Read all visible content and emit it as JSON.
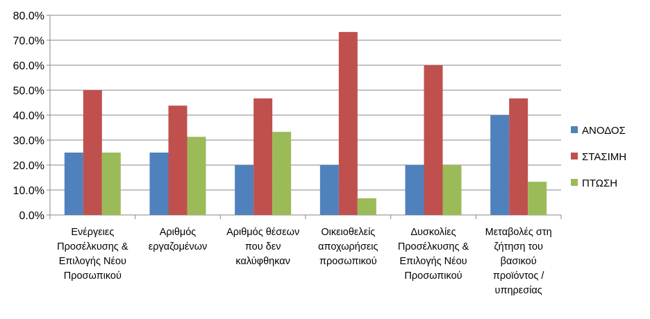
{
  "chart_data": {
    "type": "bar",
    "categories": [
      [
        "Ενέργειες",
        "Προσέλκυσης &",
        "Επιλογής Νέου",
        "Προσωπικού"
      ],
      [
        "Αριθμός",
        "εργαζομένων"
      ],
      [
        "Αριθμός θέσεων",
        "που δεν",
        "καλύφθηκαν"
      ],
      [
        "Οικειοθελείς",
        "αποχωρήσεις",
        "προσωπικού"
      ],
      [
        "Δυσκολίες",
        "Προσέλκυσης &",
        "Επιλογής Νέου",
        "Προσωπικού"
      ],
      [
        "Μεταβολές στη",
        "ζήτηση του",
        "βασικού",
        "προϊόντος /",
        "υπηρεσίας"
      ]
    ],
    "series": [
      {
        "name": "ΑΝΟΔΟΣ",
        "color": "#4F81BD",
        "values": [
          25.0,
          25.0,
          20.0,
          20.0,
          20.0,
          40.0
        ]
      },
      {
        "name": "ΣΤΑΣΙΜΗ",
        "color": "#C0504D",
        "values": [
          50.0,
          43.8,
          46.7,
          73.3,
          60.0,
          46.7
        ]
      },
      {
        "name": "ΠΤΩΣΗ",
        "color": "#9BBB59",
        "values": [
          25.0,
          31.3,
          33.3,
          6.7,
          20.0,
          13.3
        ]
      }
    ],
    "yticks": [
      "0.0%",
      "10.0%",
      "20.0%",
      "30.0%",
      "40.0%",
      "50.0%",
      "60.0%",
      "70.0%",
      "80.0%"
    ],
    "ylim": [
      0,
      80
    ],
    "grid": true,
    "legend_position": "right"
  }
}
